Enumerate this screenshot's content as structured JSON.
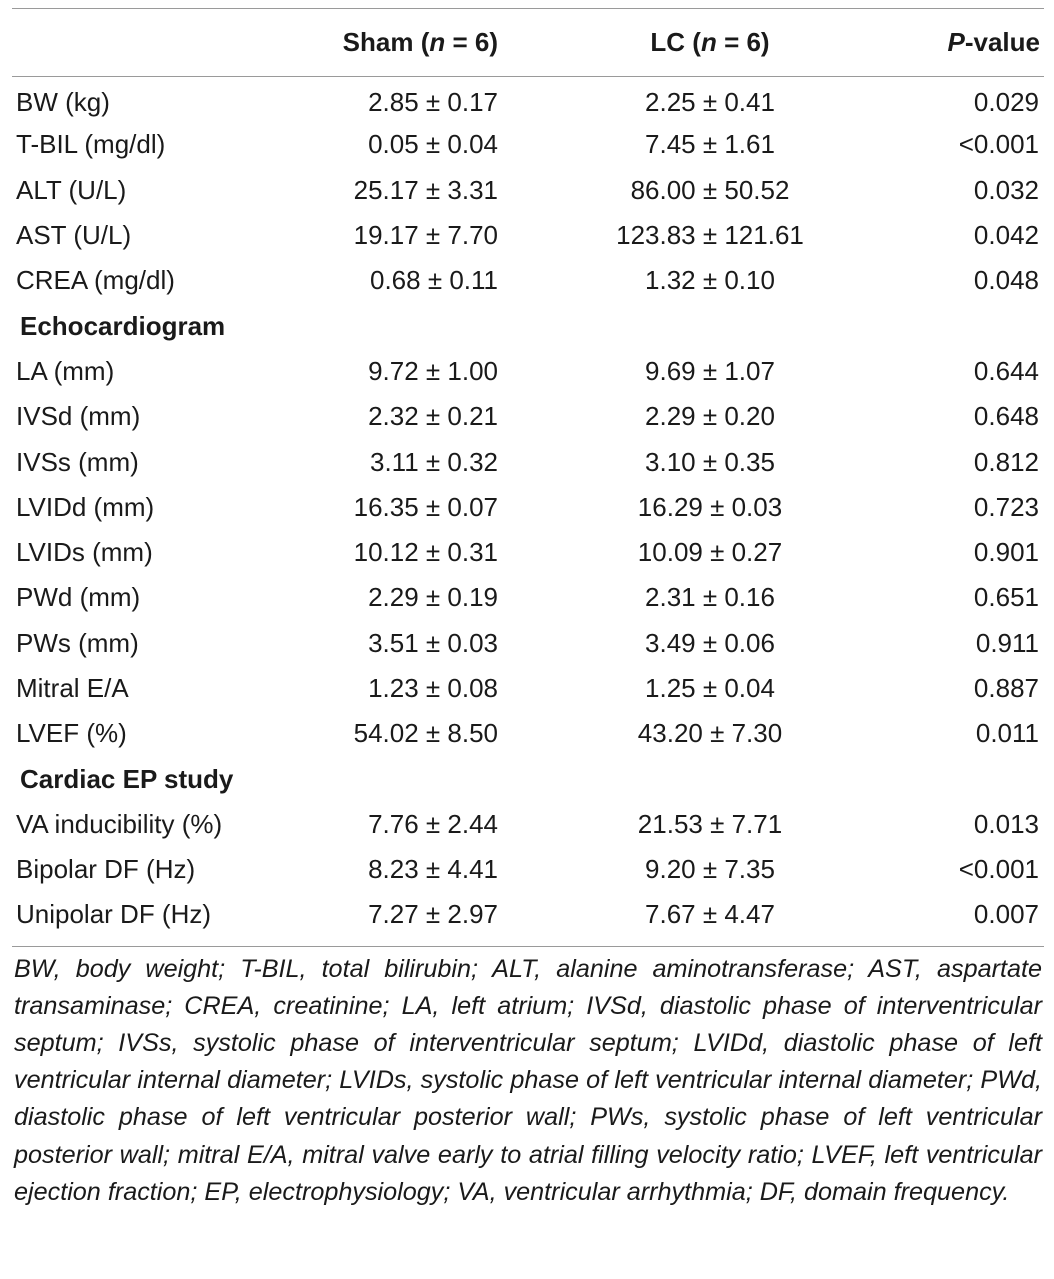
{
  "header": {
    "col_label": "",
    "sham_label": "Sham (",
    "sham_n": "n",
    "sham_rest": " = 6)",
    "lc_label": "LC (",
    "lc_n": "n",
    "lc_rest": " = 6)",
    "p_label_italic": "P",
    "p_label_rest": "-value"
  },
  "rows": [
    {
      "label": "BW (kg)",
      "sham": "2.85 ± 0.17",
      "lc": "2.25 ± 0.41",
      "p": "0.029"
    },
    {
      "label": "T-BIL (mg/dl)",
      "sham": "0.05 ± 0.04",
      "lc": "7.45 ± 1.61",
      "p": "<0.001"
    },
    {
      "label": "ALT (U/L)",
      "sham": "25.17 ± 3.31",
      "lc": "86.00 ± 50.52",
      "p": "0.032"
    },
    {
      "label": "AST (U/L)",
      "sham": "19.17 ± 7.70",
      "lc": "123.83 ± 121.61",
      "p": "0.042"
    },
    {
      "label": "CREA (mg/dl)",
      "sham": "0.68 ± 0.11",
      "lc": "1.32 ± 0.10",
      "p": "0.048"
    }
  ],
  "section_echo": "Echocardiogram",
  "echo_rows": [
    {
      "label": "LA (mm)",
      "sham": "9.72 ± 1.00",
      "lc": "9.69 ± 1.07",
      "p": "0.644"
    },
    {
      "label": "IVSd (mm)",
      "sham": "2.32 ± 0.21",
      "lc": "2.29 ± 0.20",
      "p": "0.648"
    },
    {
      "label": "IVSs (mm)",
      "sham": "3.11 ± 0.32",
      "lc": "3.10 ± 0.35",
      "p": "0.812"
    },
    {
      "label": "LVIDd (mm)",
      "sham": "16.35 ± 0.07",
      "lc": "16.29 ± 0.03",
      "p": "0.723"
    },
    {
      "label": "LVIDs (mm)",
      "sham": "10.12 ± 0.31",
      "lc": "10.09 ± 0.27",
      "p": "0.901"
    },
    {
      "label": "PWd (mm)",
      "sham": "2.29 ± 0.19",
      "lc": "2.31 ± 0.16",
      "p": "0.651"
    },
    {
      "label": "PWs (mm)",
      "sham": "3.51 ± 0.03",
      "lc": "3.49 ± 0.06",
      "p": "0.911"
    },
    {
      "label": "Mitral E/A",
      "sham": "1.23 ± 0.08",
      "lc": "1.25 ± 0.04",
      "p": "0.887"
    },
    {
      "label": "LVEF (%)",
      "sham": "54.02 ± 8.50",
      "lc": "43.20 ± 7.30",
      "p": "0.011"
    }
  ],
  "section_ep": "Cardiac EP study",
  "ep_rows": [
    {
      "label": "VA inducibility (%)",
      "sham": "7.76 ± 2.44",
      "lc": "21.53 ± 7.71",
      "p": "0.013"
    },
    {
      "label": "Bipolar DF (Hz)",
      "sham": "8.23 ± 4.41",
      "lc": "9.20 ± 7.35",
      "p": "<0.001"
    },
    {
      "label": "Unipolar DF (Hz)",
      "sham": "7.27 ± 2.97",
      "lc": "7.67 ± 4.47",
      "p": "0.007"
    }
  ],
  "footnote": "BW, body weight; T-BIL, total bilirubin; ALT, alanine aminotransferase; AST, aspartate transaminase; CREA, creatinine; LA, left atrium; IVSd, diastolic phase of interventricular septum; IVSs, systolic phase of interventricular septum; LVIDd, diastolic phase of left ventricular internal diameter; LVIDs, systolic phase of left ventricular internal diameter; PWd, diastolic phase of left ventricular posterior wall; PWs, systolic phase of left ventricular posterior wall; mitral E/A, mitral valve early to atrial filling velocity ratio; LVEF, left ventricular ejection fraction; EP, electrophysiology; VA, ventricular arrhythmia; DF, domain frequency."
}
